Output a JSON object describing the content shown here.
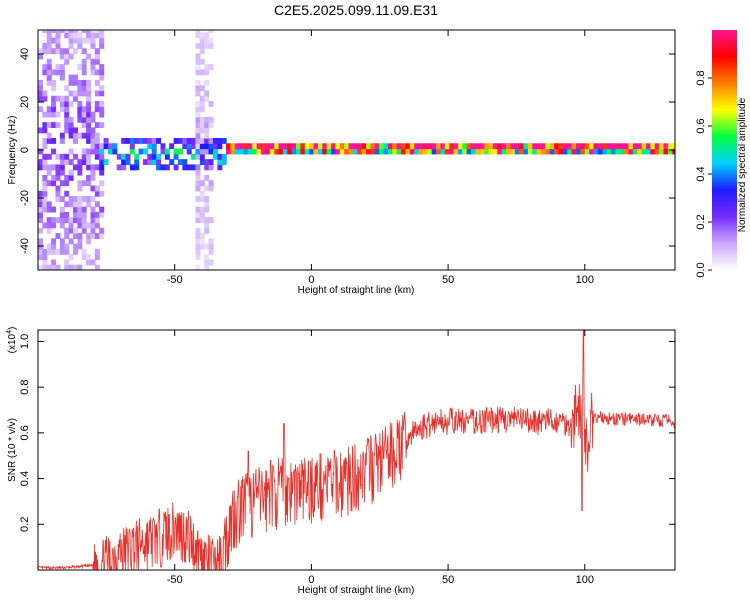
{
  "title": "C2E5.2025.099.11.09.E31",
  "colors": {
    "trace": "#e8302a",
    "axis": "#000000"
  },
  "chart_data": [
    {
      "type": "heatmap",
      "xlabel": "Height of straight line (km)",
      "ylabel": "Frequency (Hz)",
      "xlim": [
        -100,
        133
      ],
      "ylim": [
        -50,
        50
      ],
      "xticks": [
        -50,
        0,
        50,
        100
      ],
      "yticks": [
        -40,
        -20,
        0,
        20,
        40
      ],
      "colorbar": {
        "label": "Normalized spectral amplitude",
        "range": [
          0,
          1
        ],
        "ticks": [
          "0.0",
          "0.2",
          "0.4",
          "0.6",
          "0.8"
        ],
        "colormap": [
          "#ffffff",
          "#c9a6ff",
          "#7a2cff",
          "#1b1bff",
          "#00d0ff",
          "#00ff40",
          "#ffff00",
          "#ff8000",
          "#ff0000",
          "#ff1493"
        ]
      },
      "features": [
        {
          "region": "diffuse broadband noise",
          "x_range": [
            -100,
            -77
          ],
          "freq_range": [
            -50,
            50
          ],
          "amplitude": 0.15
        },
        {
          "region": "noise band",
          "x_range": [
            -44,
            -37
          ],
          "freq_range": [
            -50,
            50
          ],
          "amplitude": 0.08
        },
        {
          "region": "broad spectral line",
          "x_range": [
            -79,
            -32
          ],
          "freq_range": [
            -10,
            5
          ],
          "amplitude": 0.35
        },
        {
          "region": "narrow spectral line at 0 Hz",
          "x_range": [
            -32,
            133
          ],
          "freq_range": [
            -2,
            2
          ],
          "amplitude": 0.95
        }
      ]
    },
    {
      "type": "line",
      "xlabel": "Height of straight line (km)",
      "ylabel": "SNR (10 * v/v)",
      "yscale_label": "(x10",
      "yscale_exponent": "4",
      "xlim": [
        -100,
        133
      ],
      "ylim": [
        0,
        1.05
      ],
      "xticks": [
        -50,
        0,
        50,
        100
      ],
      "yticks": [
        0.2,
        0.4,
        0.6,
        0.8,
        1.0
      ],
      "ytick_labels": [
        "0.2",
        "0.4",
        "0.6",
        "0.8",
        "1.0"
      ],
      "series": [
        {
          "x": [
            -100,
            -90,
            -80,
            -75,
            -70,
            -65,
            -60,
            -55,
            -50,
            -45,
            -40,
            -35,
            -33,
            -30,
            -28,
            -25,
            -20,
            -15,
            -12,
            -10,
            -5,
            0,
            5,
            10,
            15,
            20,
            25,
            30,
            35,
            40,
            45,
            50,
            60,
            70,
            80,
            90,
            95,
            97,
            99,
            100,
            101,
            103,
            110,
            120,
            133
          ],
          "y": [
            0.01,
            0.01,
            0.02,
            0.05,
            0.09,
            0.12,
            0.14,
            0.17,
            0.2,
            0.17,
            0.07,
            0.04,
            0.06,
            0.22,
            0.28,
            0.31,
            0.33,
            0.35,
            0.37,
            0.37,
            0.38,
            0.39,
            0.4,
            0.41,
            0.43,
            0.46,
            0.5,
            0.54,
            0.58,
            0.62,
            0.65,
            0.65,
            0.65,
            0.66,
            0.65,
            0.65,
            0.64,
            0.7,
            0.72,
            0.62,
            0.55,
            0.67,
            0.66,
            0.66,
            0.65
          ],
          "spikes": [
            {
              "x": -10,
              "y": 0.64
            },
            {
              "x": -15,
              "y": 0.48
            },
            {
              "x": -23,
              "y": 0.52
            },
            {
              "x": 99.5,
              "y": 1.05
            },
            {
              "x": 99,
              "y": 0.26
            }
          ]
        }
      ]
    }
  ]
}
